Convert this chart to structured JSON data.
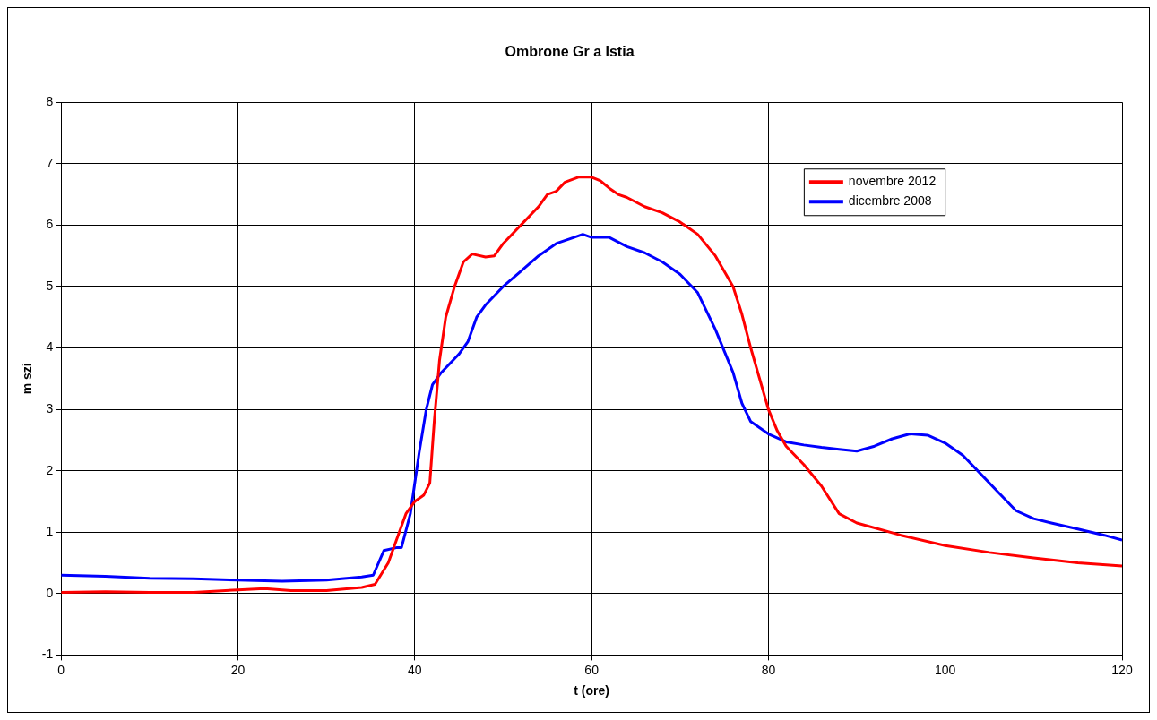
{
  "chart_data": {
    "type": "line",
    "title": "Ombrone Gr a Istia",
    "xlabel": "t (ore)",
    "ylabel": "m szi",
    "xlim": [
      0,
      120
    ],
    "xticks": [
      0,
      20,
      40,
      60,
      80,
      100,
      120
    ],
    "ylim": [
      -1,
      8
    ],
    "yticks": [
      -1,
      0,
      1,
      2,
      3,
      4,
      5,
      6,
      7,
      8
    ],
    "grid": true,
    "legend": "top right",
    "marker": "none",
    "line_style": "solid",
    "series": [
      {
        "name": "novembre 2012",
        "color": "#ff0000",
        "x": [
          0,
          5,
          10,
          15,
          20,
          23,
          26,
          30,
          34,
          35.5,
          37,
          38,
          39,
          40,
          41,
          41.7,
          42.2,
          42.8,
          43.5,
          44.5,
          45.5,
          46.5,
          48,
          49,
          50,
          52,
          54,
          55,
          56,
          57,
          58.5,
          60,
          61,
          62,
          63,
          64,
          66,
          68,
          70,
          72,
          74,
          76,
          77,
          78,
          80,
          81,
          82,
          84,
          86,
          88,
          90,
          95,
          100,
          105,
          110,
          115,
          120
        ],
        "values": [
          0.02,
          0.03,
          0.02,
          0.02,
          0.06,
          0.08,
          0.05,
          0.05,
          0.1,
          0.15,
          0.5,
          0.9,
          1.3,
          1.5,
          1.6,
          1.8,
          2.8,
          3.8,
          4.5,
          5.0,
          5.4,
          5.53,
          5.48,
          5.5,
          5.7,
          6.0,
          6.3,
          6.5,
          6.55,
          6.7,
          6.78,
          6.78,
          6.72,
          6.6,
          6.5,
          6.45,
          6.3,
          6.2,
          6.05,
          5.85,
          5.5,
          5.0,
          4.55,
          4.0,
          3.0,
          2.65,
          2.4,
          2.1,
          1.75,
          1.3,
          1.15,
          0.95,
          0.78,
          0.67,
          0.58,
          0.5,
          0.45
        ]
      },
      {
        "name": "dicembre 2008",
        "color": "#0000ff",
        "x": [
          0,
          5,
          10,
          15,
          20,
          25,
          30,
          34,
          35.3,
          36.5,
          38,
          38.5,
          39.5,
          40.5,
          41.3,
          42,
          43,
          45,
          46,
          47,
          48,
          50,
          52,
          54,
          56,
          58,
          59,
          60,
          62,
          64,
          66,
          68,
          70,
          72,
          74,
          76,
          77,
          78,
          80,
          82,
          84,
          86,
          88,
          90,
          92,
          94,
          96,
          98,
          100,
          102,
          104,
          106,
          108,
          110,
          112,
          115,
          118,
          120
        ],
        "values": [
          0.3,
          0.28,
          0.25,
          0.24,
          0.22,
          0.2,
          0.22,
          0.27,
          0.3,
          0.7,
          0.75,
          0.75,
          1.3,
          2.3,
          3.0,
          3.4,
          3.6,
          3.9,
          4.1,
          4.5,
          4.7,
          5.0,
          5.25,
          5.5,
          5.7,
          5.8,
          5.85,
          5.8,
          5.8,
          5.65,
          5.55,
          5.4,
          5.2,
          4.9,
          4.3,
          3.6,
          3.1,
          2.8,
          2.6,
          2.47,
          2.42,
          2.38,
          2.35,
          2.32,
          2.4,
          2.52,
          2.6,
          2.58,
          2.45,
          2.25,
          1.95,
          1.65,
          1.35,
          1.22,
          1.15,
          1.05,
          0.95,
          0.87
        ]
      }
    ]
  }
}
